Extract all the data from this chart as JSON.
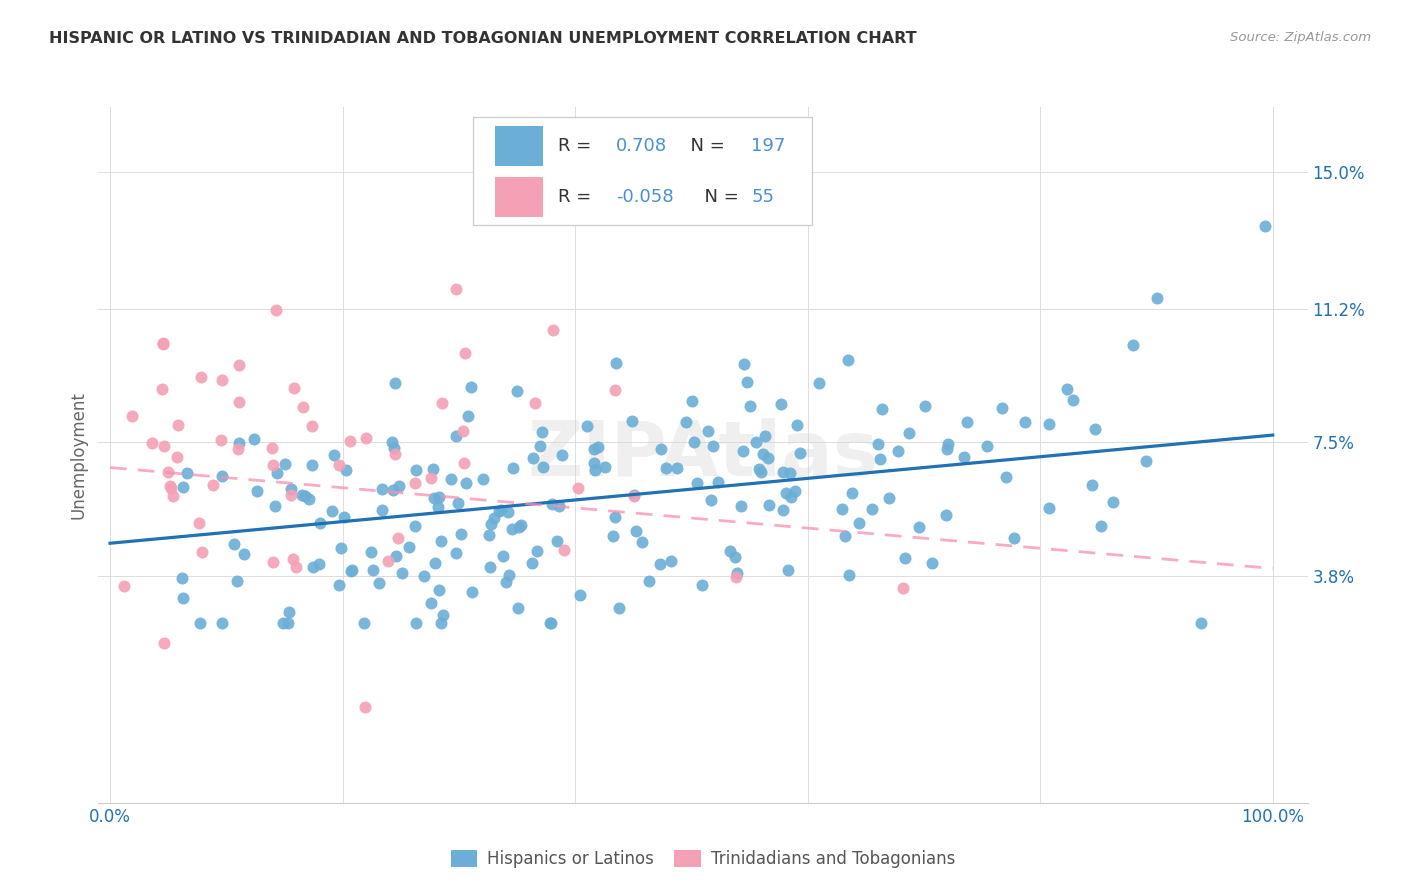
{
  "title": "HISPANIC OR LATINO VS TRINIDADIAN AND TOBAGONIAN UNEMPLOYMENT CORRELATION CHART",
  "source": "Source: ZipAtlas.com",
  "ylabel": "Unemployment",
  "xlim": [
    -0.01,
    1.03
  ],
  "ylim": [
    -0.025,
    0.168
  ],
  "ytick_vals": [
    0.038,
    0.075,
    0.112,
    0.15
  ],
  "ytick_labels": [
    "3.8%",
    "7.5%",
    "11.2%",
    "15.0%"
  ],
  "xtick_vals": [
    0.0,
    0.2,
    0.4,
    0.6,
    0.8,
    1.0
  ],
  "xtick_labels": [
    "0.0%",
    "",
    "",
    "",
    "",
    "100.0%"
  ],
  "blue_R": "0.708",
  "blue_N": "197",
  "pink_R": "-0.058",
  "pink_N": "55",
  "blue_color": "#6baed6",
  "pink_color": "#f4a0b5",
  "blue_line_color": "#2171b5",
  "pink_line_color": "#f78fb3",
  "watermark": "ZIPAtlas",
  "background_color": "#ffffff",
  "grid_color": "#dddddd",
  "blue_line_y0": 0.047,
  "blue_line_y1": 0.077,
  "pink_line_y0": 0.068,
  "pink_line_y1": 0.04
}
